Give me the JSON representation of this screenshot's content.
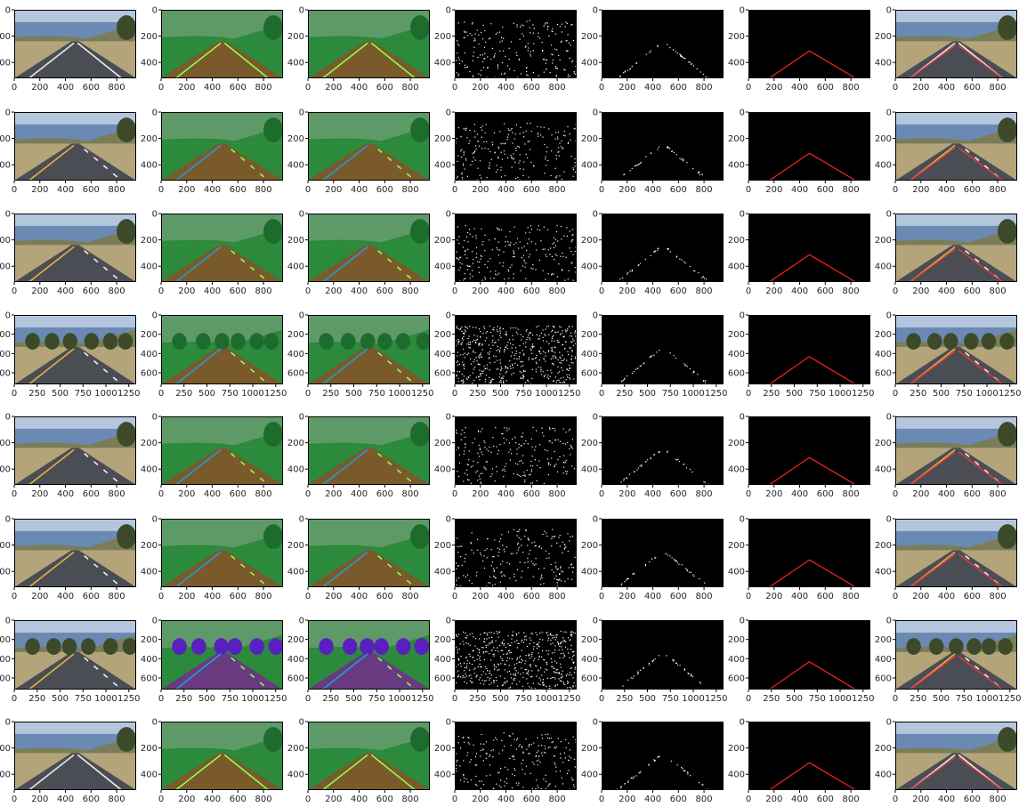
{
  "stage_count": 7,
  "colors": {
    "sky": "#6a89b3",
    "sky_light": "#b3c6de",
    "road": "#4b4d55",
    "dirt": "#b4a47a",
    "hls_sky": "#5e9a68",
    "hls_road": "#7a5a2a",
    "hls_grass": "#2b8a3c",
    "hls_lane_yellow": "#1e9fd0",
    "hls_lane_white": "#8cff4c",
    "hls_dark_purple": "#5a1fc0",
    "edge_white": "#ffffff",
    "mask_black": "#000000",
    "hough_red": "#ff2020",
    "overlay_red": "#e63a3a"
  },
  "rows": [
    {
      "kind": "small",
      "scene": "solid-right",
      "yticks": [
        "0",
        "200",
        "400"
      ],
      "xticks": [
        "0",
        "200",
        "400",
        "600",
        "800"
      ]
    },
    {
      "kind": "small",
      "scene": "yellow-left",
      "yticks": [
        "0",
        "200",
        "400"
      ],
      "xticks": [
        "0",
        "200",
        "400",
        "600",
        "800"
      ]
    },
    {
      "kind": "small",
      "scene": "yellow-left",
      "yticks": [
        "0",
        "200",
        "400"
      ],
      "xticks": [
        "0",
        "200",
        "400",
        "600",
        "800"
      ]
    },
    {
      "kind": "large",
      "scene": "challenge-trees",
      "yticks": [
        "0",
        "200",
        "400",
        "600"
      ],
      "xticks": [
        "0",
        "250",
        "500",
        "750",
        "1000",
        "1250"
      ]
    },
    {
      "kind": "small",
      "scene": "yellow-left",
      "yticks": [
        "0",
        "200",
        "400"
      ],
      "xticks": [
        "0",
        "200",
        "400",
        "600",
        "800"
      ]
    },
    {
      "kind": "small",
      "scene": "yellow-left",
      "yticks": [
        "0",
        "200",
        "400"
      ],
      "xticks": [
        "0",
        "200",
        "400",
        "600",
        "800"
      ]
    },
    {
      "kind": "large",
      "scene": "challenge-shadow",
      "yticks": [
        "0",
        "200",
        "400",
        "600"
      ],
      "xticks": [
        "0",
        "250",
        "500",
        "750",
        "1000",
        "1250"
      ]
    },
    {
      "kind": "small",
      "scene": "solid-right",
      "yticks": [
        "0",
        "200",
        "400"
      ],
      "xticks": [
        "0",
        "200",
        "400",
        "600",
        "800"
      ]
    }
  ]
}
